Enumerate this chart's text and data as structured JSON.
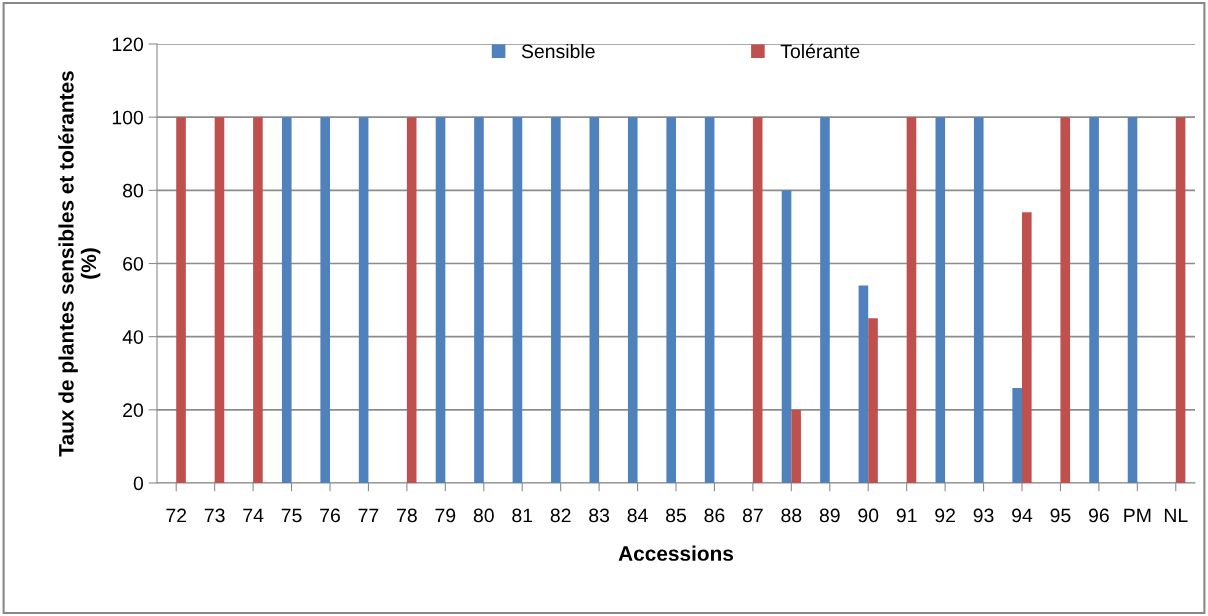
{
  "chart_data": {
    "type": "bar",
    "xlabel": "Accessions",
    "ylabel": "Taux de plantes sensibles et tolérantes\n(%)",
    "categories": [
      "72",
      "73",
      "74",
      "75",
      "76",
      "77",
      "78",
      "79",
      "80",
      "81",
      "82",
      "83",
      "84",
      "85",
      "86",
      "87",
      "88",
      "89",
      "90",
      "91",
      "92",
      "93",
      "94",
      "95",
      "96",
      "PM",
      "NL"
    ],
    "series": [
      {
        "name": "Sensible",
        "color": "#4f81bd",
        "values": [
          0,
          0,
          0,
          100,
          100,
          100,
          0,
          100,
          100,
          100,
          100,
          100,
          100,
          100,
          100,
          0,
          80,
          100,
          54,
          0,
          100,
          100,
          26,
          0,
          100,
          100,
          0
        ]
      },
      {
        "name": "Tolérante",
        "color": "#c0504d",
        "values": [
          100,
          100,
          100,
          0,
          0,
          0,
          100,
          0,
          0,
          0,
          0,
          0,
          0,
          0,
          0,
          100,
          20,
          0,
          45,
          100,
          0,
          0,
          74,
          100,
          0,
          0,
          100
        ]
      }
    ],
    "ylim": [
      0,
      120
    ],
    "yticks": [
      0,
      20,
      40,
      60,
      80,
      100,
      120
    ],
    "grid": "y",
    "legend": "top"
  }
}
